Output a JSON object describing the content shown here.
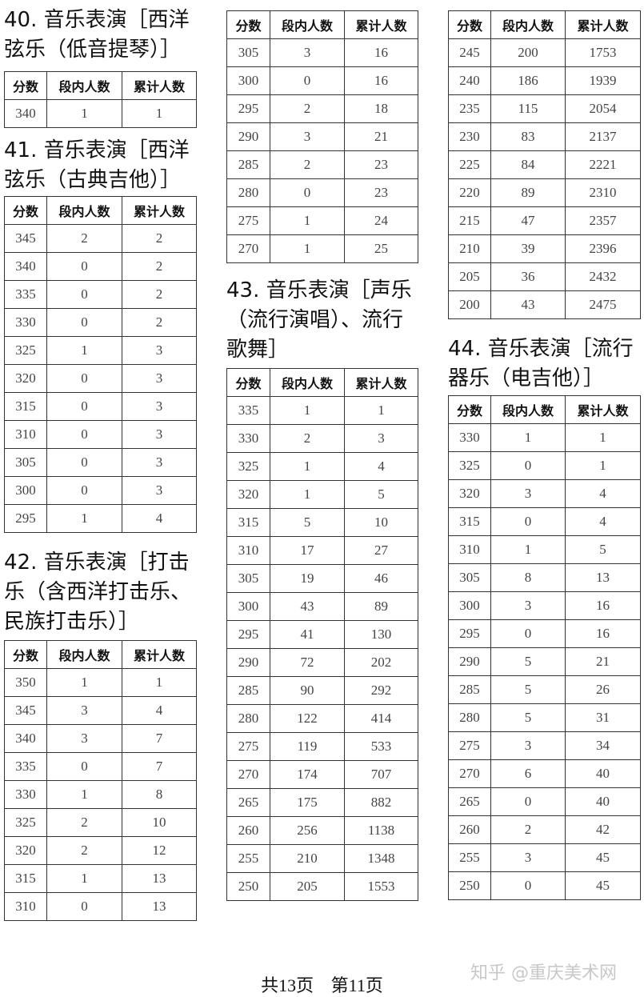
{
  "headers": [
    "分数",
    "段内人数",
    "累计人数"
  ],
  "sections": [
    {
      "id": "s40",
      "heading": [
        "40. 音乐表演［西洋",
        "弦乐（低音提琴）］"
      ],
      "rows": [
        [
          "340",
          "1",
          "1"
        ]
      ]
    },
    {
      "id": "s41",
      "heading": [
        "41. 音乐表演［西洋",
        "弦乐（古典吉他）］"
      ],
      "rows": [
        [
          "345",
          "2",
          "2"
        ],
        [
          "340",
          "0",
          "2"
        ],
        [
          "335",
          "0",
          "2"
        ],
        [
          "330",
          "0",
          "2"
        ],
        [
          "325",
          "1",
          "3"
        ],
        [
          "320",
          "0",
          "3"
        ],
        [
          "315",
          "0",
          "3"
        ],
        [
          "310",
          "0",
          "3"
        ],
        [
          "305",
          "0",
          "3"
        ],
        [
          "300",
          "0",
          "3"
        ],
        [
          "295",
          "1",
          "4"
        ]
      ]
    },
    {
      "id": "s42",
      "heading": [
        "42. 音乐表演［打击",
        "乐（含西洋打击乐、",
        "民族打击乐）］"
      ],
      "rows": [
        [
          "350",
          "1",
          "1"
        ],
        [
          "345",
          "3",
          "4"
        ],
        [
          "340",
          "3",
          "7"
        ],
        [
          "335",
          "0",
          "7"
        ],
        [
          "330",
          "1",
          "8"
        ],
        [
          "325",
          "2",
          "10"
        ],
        [
          "320",
          "2",
          "12"
        ],
        [
          "315",
          "1",
          "13"
        ],
        [
          "310",
          "0",
          "13"
        ]
      ]
    },
    {
      "id": "s42b",
      "heading": [],
      "rows": [
        [
          "305",
          "3",
          "16"
        ],
        [
          "300",
          "0",
          "16"
        ],
        [
          "295",
          "2",
          "18"
        ],
        [
          "290",
          "3",
          "21"
        ],
        [
          "285",
          "2",
          "23"
        ],
        [
          "280",
          "0",
          "23"
        ],
        [
          "275",
          "1",
          "24"
        ],
        [
          "270",
          "1",
          "25"
        ]
      ]
    },
    {
      "id": "s43",
      "heading": [
        "43. 音乐表演［声乐",
        "（流行演唱）、流行",
        "歌舞］"
      ],
      "rows": [
        [
          "335",
          "1",
          "1"
        ],
        [
          "330",
          "2",
          "3"
        ],
        [
          "325",
          "1",
          "4"
        ],
        [
          "320",
          "1",
          "5"
        ],
        [
          "315",
          "5",
          "10"
        ],
        [
          "310",
          "17",
          "27"
        ],
        [
          "305",
          "19",
          "46"
        ],
        [
          "300",
          "43",
          "89"
        ],
        [
          "295",
          "41",
          "130"
        ],
        [
          "290",
          "72",
          "202"
        ],
        [
          "285",
          "90",
          "292"
        ],
        [
          "280",
          "122",
          "414"
        ],
        [
          "275",
          "119",
          "533"
        ],
        [
          "270",
          "174",
          "707"
        ],
        [
          "265",
          "175",
          "882"
        ],
        [
          "260",
          "256",
          "1138"
        ],
        [
          "255",
          "210",
          "1348"
        ],
        [
          "250",
          "205",
          "1553"
        ]
      ]
    },
    {
      "id": "s43b",
      "heading": [],
      "rows": [
        [
          "245",
          "200",
          "1753"
        ],
        [
          "240",
          "186",
          "1939"
        ],
        [
          "235",
          "115",
          "2054"
        ],
        [
          "230",
          "83",
          "2137"
        ],
        [
          "225",
          "84",
          "2221"
        ],
        [
          "220",
          "89",
          "2310"
        ],
        [
          "215",
          "47",
          "2357"
        ],
        [
          "210",
          "39",
          "2396"
        ],
        [
          "205",
          "36",
          "2432"
        ],
        [
          "200",
          "43",
          "2475"
        ]
      ]
    },
    {
      "id": "s44",
      "heading": [
        "44. 音乐表演［流行",
        "器乐（电吉他）］"
      ],
      "rows": [
        [
          "330",
          "1",
          "1"
        ],
        [
          "325",
          "0",
          "1"
        ],
        [
          "320",
          "3",
          "4"
        ],
        [
          "315",
          "0",
          "4"
        ],
        [
          "310",
          "1",
          "5"
        ],
        [
          "305",
          "8",
          "13"
        ],
        [
          "300",
          "3",
          "16"
        ],
        [
          "295",
          "0",
          "16"
        ],
        [
          "290",
          "5",
          "21"
        ],
        [
          "285",
          "5",
          "26"
        ],
        [
          "280",
          "5",
          "31"
        ],
        [
          "275",
          "3",
          "34"
        ],
        [
          "270",
          "6",
          "40"
        ],
        [
          "265",
          "0",
          "40"
        ],
        [
          "260",
          "2",
          "42"
        ],
        [
          "255",
          "3",
          "45"
        ],
        [
          "250",
          "0",
          "45"
        ]
      ]
    }
  ],
  "footer": {
    "total": "共13页",
    "current": "第11页"
  },
  "watermark": "知乎 @重庆美术网"
}
